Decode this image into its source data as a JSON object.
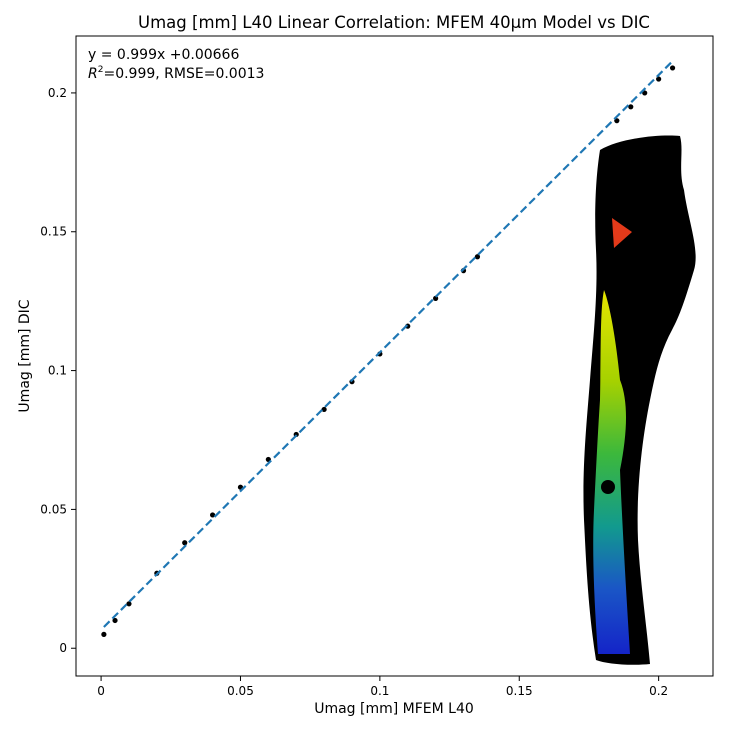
{
  "chart_data": {
    "type": "scatter",
    "title": "Umag [mm] L40 Linear Correlation: MFEM 40µm Model vs DIC",
    "xlabel": "Umag [mm] MFEM L40",
    "ylabel": "Umag [mm] DIC",
    "xlim": [
      -0.009,
      0.2195
    ],
    "ylim": [
      -0.01,
      0.2205
    ],
    "xticks": [
      0,
      0.05,
      0.1,
      0.15,
      0.2
    ],
    "xtick_labels": [
      "0",
      "0.05",
      "0.1",
      "0.15",
      "0.2"
    ],
    "yticks": [
      0,
      0.05,
      0.1,
      0.15,
      0.2
    ],
    "ytick_labels": [
      "0",
      "0.05",
      "0.1",
      "0.15",
      "0.2"
    ],
    "grid": false,
    "annotation": {
      "line1": "y = 0.999x +0.00666",
      "r2_label": "R",
      "r2_sup": "2",
      "line2_rest": "=0.999, RMSE=0.0013"
    },
    "series": [
      {
        "kind": "scatter",
        "color": "#000000",
        "x": [
          0.001,
          0.005,
          0.01,
          0.02,
          0.03,
          0.04,
          0.05,
          0.06,
          0.07,
          0.08,
          0.09,
          0.1,
          0.11,
          0.12,
          0.13,
          0.135,
          0.185,
          0.19,
          0.195,
          0.2,
          0.205
        ],
        "y": [
          0.005,
          0.01,
          0.016,
          0.027,
          0.038,
          0.048,
          0.058,
          0.068,
          0.077,
          0.086,
          0.096,
          0.106,
          0.116,
          0.126,
          0.136,
          0.141,
          0.19,
          0.195,
          0.2,
          0.205,
          0.209
        ]
      },
      {
        "kind": "fit-line",
        "color": "#1f77b4",
        "style": "dashed",
        "x": [
          0.001,
          0.205
        ],
        "y": [
          0.007659,
          0.211461
        ]
      }
    ]
  }
}
